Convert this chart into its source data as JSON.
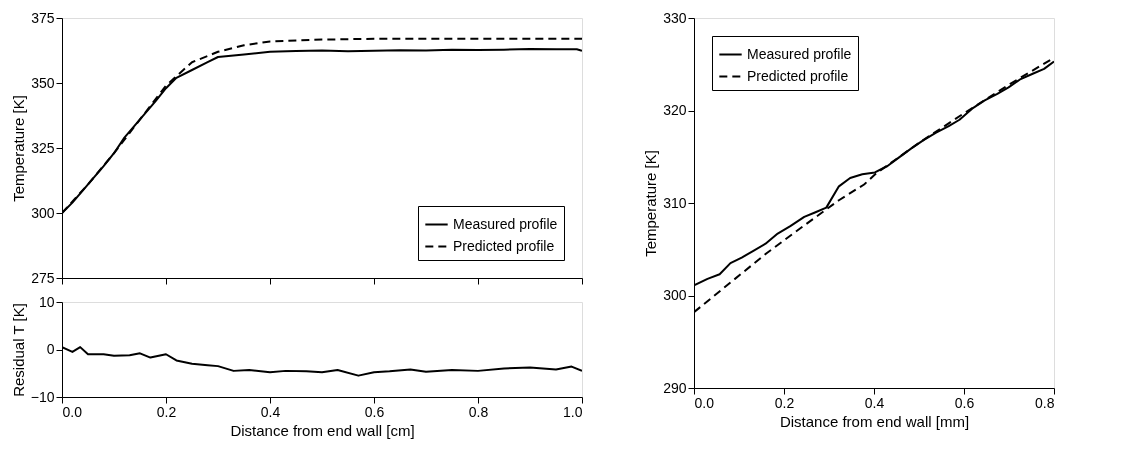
{
  "chart_data": [
    {
      "type": "line",
      "ylabel": "Temperature [K]",
      "xlim": [
        0,
        1
      ],
      "ylim": [
        275,
        375
      ],
      "yticks": [
        275,
        300,
        325,
        350,
        375
      ],
      "xticks": [
        {
          "value": 0,
          "label": null
        },
        {
          "value": 0.2,
          "label": null
        },
        {
          "value": 0.4,
          "label": null
        },
        {
          "value": 0.6,
          "label": null
        },
        {
          "value": 0.8,
          "label": null
        },
        {
          "value": 1,
          "label": null
        }
      ],
      "tick_labels": "y",
      "legend": "bottom right",
      "grid": false,
      "series": [
        {
          "name": "Measured profile",
          "color": "#000000",
          "line_style": "solid",
          "x": [
            0,
            0.02,
            0.05,
            0.08,
            0.1,
            0.12,
            0.15,
            0.18,
            0.2,
            0.22,
            0.25,
            0.28,
            0.3,
            0.35,
            0.4,
            0.45,
            0.5,
            0.55,
            0.6,
            0.65,
            0.7,
            0.75,
            0.8,
            0.85,
            0.9,
            0.95,
            0.99,
            1.0
          ],
          "values": [
            300,
            304,
            311,
            318,
            323,
            329,
            336,
            343,
            348,
            352,
            355,
            358,
            360,
            361,
            362,
            362.3,
            362.5,
            362.2,
            362.4,
            362.6,
            362.5,
            362.8,
            362.7,
            362.8,
            363.1,
            363.0,
            363.0,
            362.4
          ]
        },
        {
          "name": "Predicted profile",
          "color": "#000000",
          "line_style": "dashed",
          "x": [
            0,
            0.05,
            0.1,
            0.15,
            0.2,
            0.25,
            0.3,
            0.35,
            0.4,
            0.5,
            0.6,
            0.8,
            1.0
          ],
          "values": [
            300,
            311,
            323,
            336,
            349,
            358,
            362,
            364.5,
            366,
            366.7,
            367,
            367,
            367
          ]
        }
      ]
    },
    {
      "type": "line",
      "xlabel": "Distance from end wall [cm]",
      "ylabel": "Residual T [K]",
      "xlim": [
        0,
        1
      ],
      "ylim": [
        -10,
        10
      ],
      "yticks": [
        -10,
        0,
        10
      ],
      "xticks": [
        {
          "value": 0,
          "label": "0.0"
        },
        0.2,
        0.4,
        0.6,
        0.8,
        {
          "value": 1,
          "label": "1.0"
        }
      ],
      "grid": false,
      "series": [
        {
          "color": "#000000",
          "line_style": "solid",
          "x": [
            0,
            0.02,
            0.035,
            0.05,
            0.08,
            0.1,
            0.13,
            0.15,
            0.17,
            0.2,
            0.22,
            0.25,
            0.28,
            0.3,
            0.33,
            0.36,
            0.4,
            0.43,
            0.47,
            0.5,
            0.53,
            0.57,
            0.6,
            0.63,
            0.67,
            0.7,
            0.75,
            0.8,
            0.85,
            0.9,
            0.95,
            0.98,
            1.0
          ],
          "values": [
            0.5,
            -0.5,
            0.5,
            -1,
            -1,
            -1.3,
            -1.2,
            -0.8,
            -1.7,
            -1,
            -2.3,
            -3,
            -3.3,
            -3.5,
            -4.5,
            -4.3,
            -4.8,
            -4.5,
            -4.6,
            -4.8,
            -4.3,
            -5.5,
            -4.8,
            -4.6,
            -4.2,
            -4.7,
            -4.3,
            -4.5,
            -4.0,
            -3.8,
            -4.2,
            -3.6,
            -4.5
          ]
        }
      ]
    },
    {
      "type": "line",
      "xlabel": "Distance from end wall [mm]",
      "ylabel": "Temperature [K]",
      "xlim": [
        0,
        0.8
      ],
      "ylim": [
        290,
        330
      ],
      "yticks": [
        290,
        300,
        310,
        320,
        330
      ],
      "xticks": [
        {
          "value": 0,
          "label": "0.0"
        },
        0.2,
        0.4,
        0.6,
        0.8
      ],
      "legend": "top left",
      "grid": false,
      "series": [
        {
          "name": "Measured profile",
          "color": "#000000",
          "line_style": "solid",
          "x": [
            0,
            0.03,
            0.057,
            0.081,
            0.106,
            0.131,
            0.159,
            0.186,
            0.214,
            0.245,
            0.27,
            0.294,
            0.322,
            0.347,
            0.374,
            0.402,
            0.43,
            0.455,
            0.483,
            0.51,
            0.538,
            0.566,
            0.59,
            0.618,
            0.646,
            0.674,
            0.699,
            0.726,
            0.754,
            0.778,
            0.8
          ],
          "values": [
            301.1,
            301.8,
            302.3,
            303.5,
            304.1,
            304.8,
            305.6,
            306.7,
            307.5,
            308.5,
            309.0,
            309.5,
            311.8,
            312.7,
            313.1,
            313.3,
            314.0,
            314.9,
            315.9,
            316.8,
            317.6,
            318.3,
            319.0,
            320.2,
            321.1,
            321.8,
            322.5,
            323.4,
            324.0,
            324.5,
            325.3
          ]
        },
        {
          "name": "Predicted profile",
          "color": "#000000",
          "line_style": "dashed",
          "x": [
            0,
            0.081,
            0.162,
            0.243,
            0.322,
            0.378,
            0.405,
            0.5,
            0.6,
            0.7,
            0.8
          ],
          "values": [
            298.2,
            301.4,
            304.6,
            307.5,
            310.3,
            312.0,
            313.2,
            316.5,
            319.7,
            322.8,
            325.7
          ]
        }
      ]
    }
  ]
}
